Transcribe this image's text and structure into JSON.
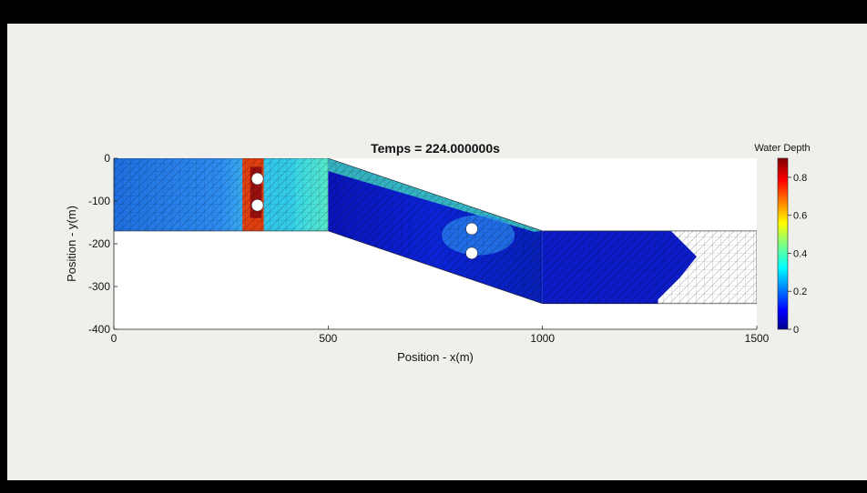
{
  "chart_data": {
    "type": "heatmap",
    "title": "Temps = 224.000000s",
    "xlabel": "Position - x(m)",
    "ylabel": "Position - y(m)",
    "xlim": [
      0,
      1500
    ],
    "ylim": [
      -400,
      0
    ],
    "x_ticks": [
      "0",
      "500",
      "1000",
      "1500"
    ],
    "y_ticks": [
      "0",
      "-100",
      "-200",
      "-300",
      "-400"
    ],
    "colorbar": {
      "label": "Water Depth",
      "range": [
        0,
        0.9
      ],
      "ticks": [
        "0",
        "0.2",
        "0.4",
        "0.6",
        "0.8"
      ],
      "colormap": [
        "#00008f",
        "#0000ff",
        "#0080ff",
        "#00ffff",
        "#80ff80",
        "#ffff00",
        "#ff8000",
        "#ff0000",
        "#800000"
      ]
    },
    "domain": [
      [
        0,
        0
      ],
      [
        500,
        0
      ],
      [
        1000,
        -170
      ],
      [
        1500,
        -170
      ],
      [
        1500,
        -340
      ],
      [
        1000,
        -340
      ],
      [
        500,
        -170
      ],
      [
        0,
        -170
      ]
    ],
    "piers": [
      {
        "x": 335,
        "y": -48
      },
      {
        "x": 335,
        "y": -110
      },
      {
        "x": 835,
        "y": -165
      },
      {
        "x": 835,
        "y": -222
      }
    ]
  }
}
